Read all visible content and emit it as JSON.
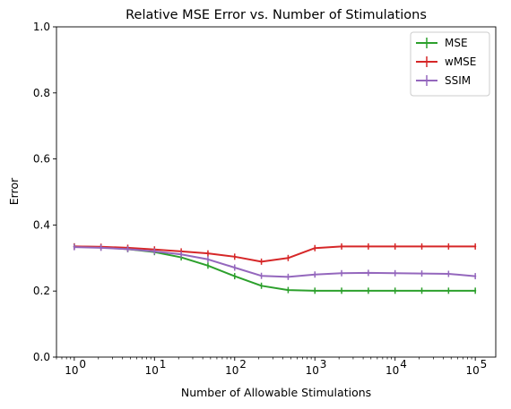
{
  "chart_data": {
    "type": "line",
    "title": "Relative MSE Error vs. Number of Stimulations",
    "xlabel": "Number of Allowable Stimulations",
    "ylabel": "Error",
    "xscale": "log",
    "xlim": [
      0.6,
      180000
    ],
    "ylim": [
      0,
      1
    ],
    "x": [
      1,
      2.154,
      4.642,
      10,
      21.54,
      46.42,
      100,
      215.4,
      464.2,
      1000,
      2154,
      4642,
      10000,
      21540,
      46420,
      100000
    ],
    "series": [
      {
        "name": "MSE",
        "color": "#2ca02c",
        "values": [
          0.335,
          0.333,
          0.327,
          0.318,
          0.302,
          0.277,
          0.245,
          0.216,
          0.203,
          0.201,
          0.201,
          0.201,
          0.201,
          0.201,
          0.201,
          0.201
        ]
      },
      {
        "name": "wMSE",
        "color": "#d62728",
        "values": [
          0.335,
          0.334,
          0.331,
          0.326,
          0.32,
          0.314,
          0.304,
          0.289,
          0.3,
          0.33,
          0.335,
          0.335,
          0.335,
          0.335,
          0.335,
          0.335
        ]
      },
      {
        "name": "SSIM",
        "color": "#9467bd",
        "values": [
          0.333,
          0.331,
          0.327,
          0.32,
          0.311,
          0.296,
          0.271,
          0.246,
          0.243,
          0.25,
          0.254,
          0.255,
          0.254,
          0.253,
          0.252,
          0.245
        ]
      }
    ],
    "y_ticks": [
      "0.0",
      "0.2",
      "0.4",
      "0.6",
      "0.8",
      "1.0"
    ],
    "y_tick_values": [
      0,
      0.2,
      0.4,
      0.6,
      0.8,
      1.0
    ],
    "x_ticks": [
      {
        "value": 1,
        "base": "10",
        "exp": "0"
      },
      {
        "value": 10,
        "base": "10",
        "exp": "1"
      },
      {
        "value": 100,
        "base": "10",
        "exp": "2"
      },
      {
        "value": 1000,
        "base": "10",
        "exp": "3"
      },
      {
        "value": 10000,
        "base": "10",
        "exp": "4"
      },
      {
        "value": 100000,
        "base": "10",
        "exp": "5"
      }
    ],
    "legend": {
      "position": "top-right"
    },
    "grid": false
  }
}
